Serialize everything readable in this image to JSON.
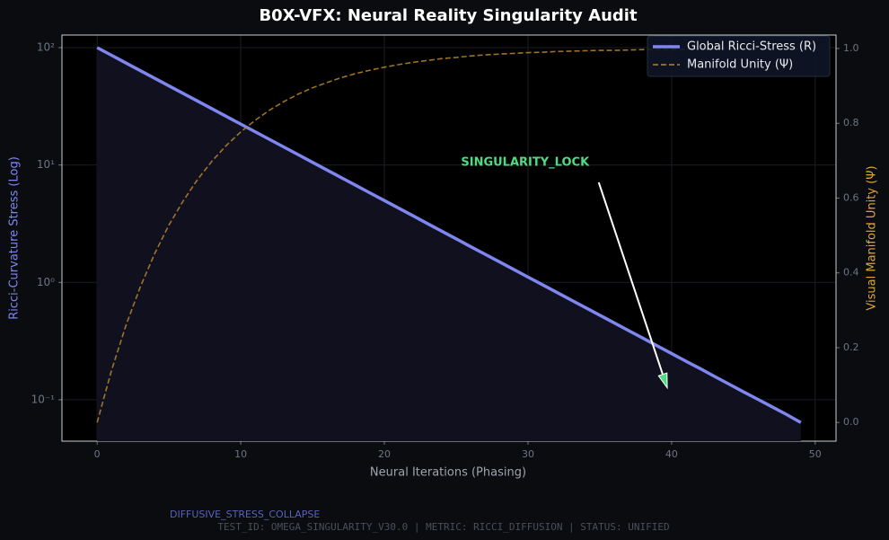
{
  "chart_data": {
    "type": "line",
    "title": "B0X-VFX: Neural Reality Singularity Audit",
    "xlabel": "Neural Iterations (Phasing)",
    "ylabel": "Ricci-Curvature Stress (Log)",
    "y2label": "Visual Manifold Unity (Ψ)",
    "yscale": "log",
    "grid": true,
    "legend": "upper right",
    "x": [
      0,
      1,
      2,
      3,
      4,
      5,
      6,
      7,
      8,
      9,
      10,
      11,
      12,
      13,
      14,
      15,
      16,
      17,
      18,
      19,
      20,
      21,
      22,
      23,
      24,
      25,
      26,
      27,
      28,
      29,
      30,
      31,
      32,
      33,
      34,
      35,
      36,
      37,
      38,
      39,
      40,
      41,
      42,
      43,
      44,
      45,
      46,
      47,
      48,
      49
    ],
    "series": [
      {
        "name": "Global Ricci-Stress (R)",
        "color": "#7f86f0",
        "fill": "#10101f",
        "values": [
          100,
          86.07,
          74.08,
          63.76,
          54.88,
          47.24,
          40.66,
          34.99,
          30.12,
          25.92,
          22.31,
          19.2,
          16.53,
          14.23,
          12.25,
          10.54,
          9.07,
          7.81,
          6.72,
          5.78,
          4.98,
          4.29,
          3.69,
          3.17,
          2.73,
          2.35,
          2.02,
          1.74,
          1.5,
          1.29,
          1.11,
          0.956,
          0.823,
          0.708,
          0.61,
          0.525,
          0.452,
          0.389,
          0.335,
          0.288,
          0.248,
          0.213,
          0.184,
          0.158,
          0.136,
          0.117,
          0.101,
          0.087,
          0.075,
          0.064
        ]
      },
      {
        "name": "Manifold Unity (Ψ)",
        "color": "#b8862b",
        "axis": "y2",
        "dashed": true,
        "values": [
          0,
          0.139,
          0.259,
          0.362,
          0.451,
          0.528,
          0.593,
          0.65,
          0.699,
          0.741,
          0.777,
          0.808,
          0.835,
          0.858,
          0.878,
          0.895,
          0.909,
          0.922,
          0.933,
          0.942,
          0.95,
          0.957,
          0.963,
          0.968,
          0.973,
          0.976,
          0.98,
          0.983,
          0.985,
          0.987,
          0.989,
          0.99,
          0.992,
          0.993,
          0.994,
          0.995,
          0.995,
          0.996,
          0.997,
          0.997,
          0.998,
          0.998,
          0.998,
          0.998,
          0.999,
          0.999,
          0.999,
          0.999,
          0.999,
          0.999
        ]
      }
    ],
    "xlim": [
      -2.45,
      51.45
    ],
    "xticks": [
      0,
      10,
      20,
      30,
      40,
      50
    ],
    "ylim": [
      0.0444,
      128
    ],
    "yticks": [
      {
        "value": 0.1,
        "label": "10⁻¹"
      },
      {
        "value": 1,
        "label": "10⁰"
      },
      {
        "value": 10,
        "label": "10¹"
      },
      {
        "value": 100,
        "label": "10²"
      }
    ],
    "y2lim": [
      -0.05,
      1.036
    ],
    "y2ticks": [
      {
        "value": 0,
        "label": "0.0"
      },
      {
        "value": 0.2,
        "label": "0.2"
      },
      {
        "value": 0.4,
        "label": "0.4"
      },
      {
        "value": 0.6,
        "label": "0.6"
      },
      {
        "value": 0.8,
        "label": "0.8"
      },
      {
        "value": 1,
        "label": "1.0"
      }
    ],
    "annotation": {
      "text": "SINGULARITY_LOCK",
      "xy": [
        39.7,
        0.126
      ],
      "xytext": [
        29.8,
        10.5
      ],
      "color": "#4ddc82"
    },
    "footer_tag": "DIFFUSIVE_STRESS_COLLAPSE",
    "footer": "TEST_ID: OMEGA_SINGULARITY_V30.0 | METRIC: RICCI_DIFFUSION | STATUS: UNIFIED"
  }
}
